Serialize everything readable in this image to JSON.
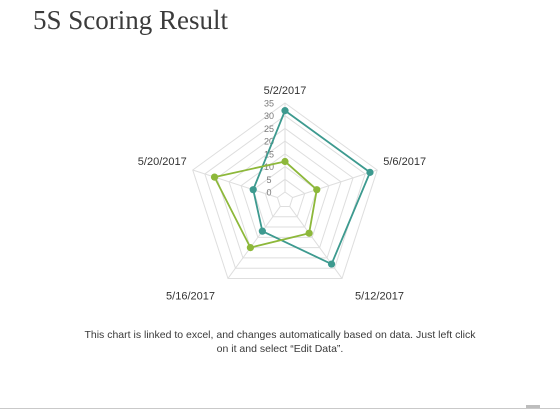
{
  "slide": {
    "title": "5S Scoring Result",
    "caption_line1": "This chart is linked to excel, and changes automatically based on data. Just left click",
    "caption_line2": "on it and select “Edit Data”."
  },
  "chart_data": {
    "type": "radar",
    "title": "",
    "categories": [
      "5/2/2017",
      "5/6/2017",
      "5/12/2017",
      "5/16/2017",
      "5/20/2017"
    ],
    "rlim": [
      0,
      35
    ],
    "ticks": [
      0,
      5,
      10,
      15,
      20,
      25,
      30,
      35
    ],
    "grid": true,
    "series": [
      {
        "color": "#3d9a8f",
        "values": [
          32,
          32,
          28,
          12,
          10
        ]
      },
      {
        "color": "#8db83a",
        "values": [
          12,
          10,
          13,
          20,
          26
        ]
      }
    ]
  }
}
